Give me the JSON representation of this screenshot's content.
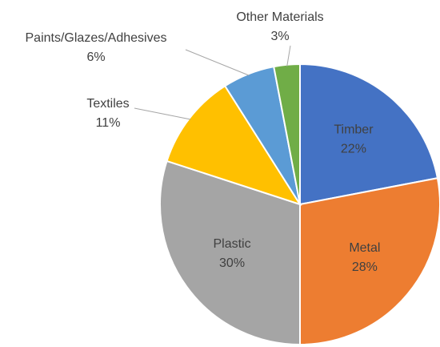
{
  "chart_data": {
    "type": "pie",
    "categories": [
      "Timber",
      "Metal",
      "Plastic",
      "Textiles",
      "Paints/Glazes/Adhesives",
      "Other Materials"
    ],
    "values": [
      22,
      28,
      30,
      11,
      6,
      3
    ],
    "value_labels": [
      "22%",
      "28%",
      "30%",
      "11%",
      "6%",
      "3%"
    ],
    "colors": [
      "#4472c4",
      "#ed7d31",
      "#a5a5a5",
      "#ffc000",
      "#5b9bd5",
      "#70ad47"
    ]
  }
}
